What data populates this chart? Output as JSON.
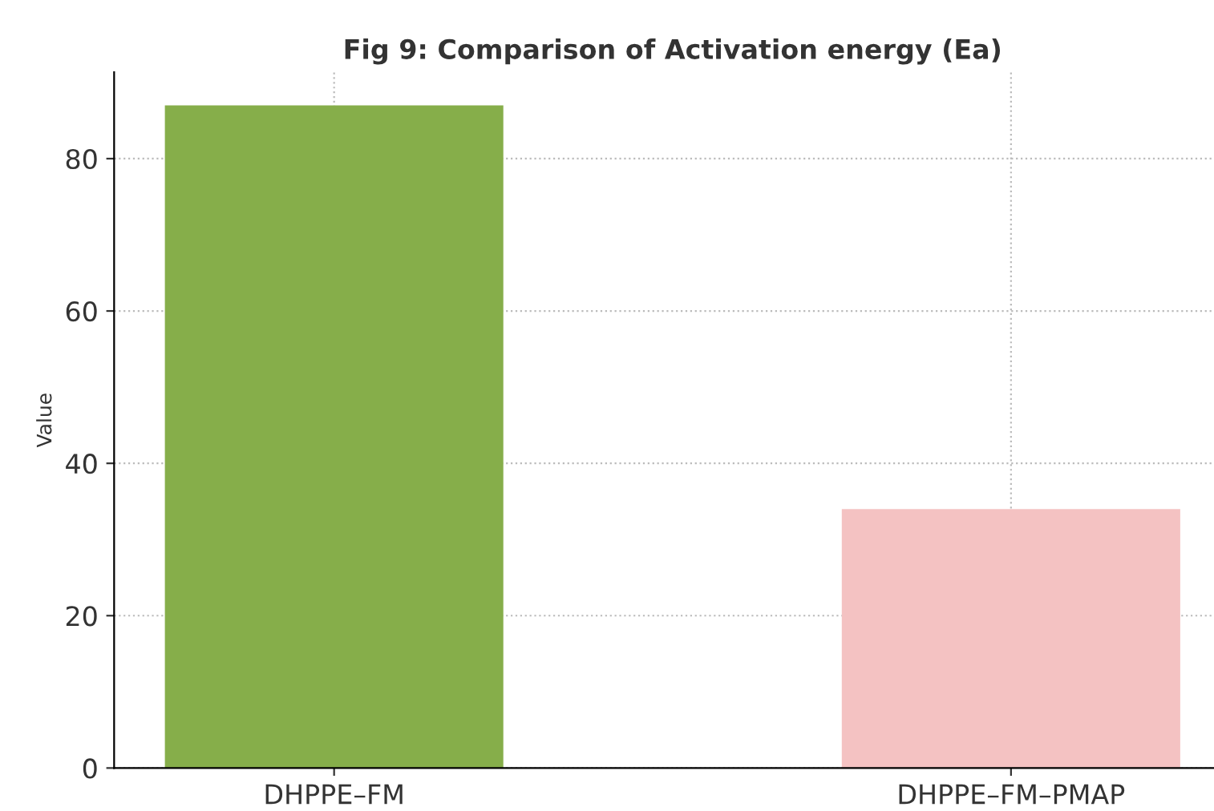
{
  "chart_data": {
    "type": "bar",
    "title": "Fig 9: Comparison of Activation energy (Ea)",
    "ylabel": "Value",
    "categories": [
      "DHPPE–FM",
      "DHPPE–FM–PMAP"
    ],
    "values": [
      87,
      34
    ],
    "colors": [
      "#86ae4a",
      "#f4c2c2"
    ],
    "ylim": [
      0,
      91.35
    ],
    "yticks": [
      0,
      20,
      40,
      60,
      80
    ],
    "grid": true,
    "legend": false
  }
}
